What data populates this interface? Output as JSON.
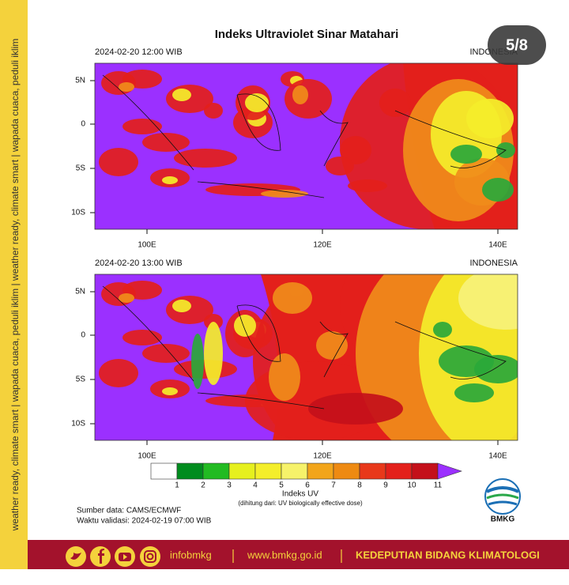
{
  "title": "Indeks Ultraviolet Sinar Matahari",
  "slide_counter": "5/8",
  "side_text": "weather ready, climate smart | wapada cuaca, peduli iklim | weather ready, climate smart | wapada cuaca, peduli iklim",
  "panels": [
    {
      "datetime": "2024-02-20  12:00 WIB",
      "region": "INDONESIA"
    },
    {
      "datetime": "2024-02-20  13:00 WIB",
      "region": "INDONESIA"
    }
  ],
  "lat_labels": [
    "5N",
    "0",
    "5S",
    "10S"
  ],
  "lon_labels": [
    "100E",
    "120E",
    "140E"
  ],
  "legend": {
    "labels": [
      1,
      2,
      3,
      4,
      5,
      6,
      7,
      8,
      9,
      10,
      11
    ],
    "title": "Indeks UV",
    "note": "(dihitung dari: UV biologically effective dose)"
  },
  "source": "Sumber data: CAMS/ECMWF",
  "validity": "Waktu validasi: 2024-02-19 07:00 WIB",
  "logo": "BMKG",
  "footer": {
    "handle": "infobmkg",
    "url": "www.bmkg.go.id",
    "dept": "KEDEPUTIAN BIDANG KLIMATOLOGI"
  }
}
